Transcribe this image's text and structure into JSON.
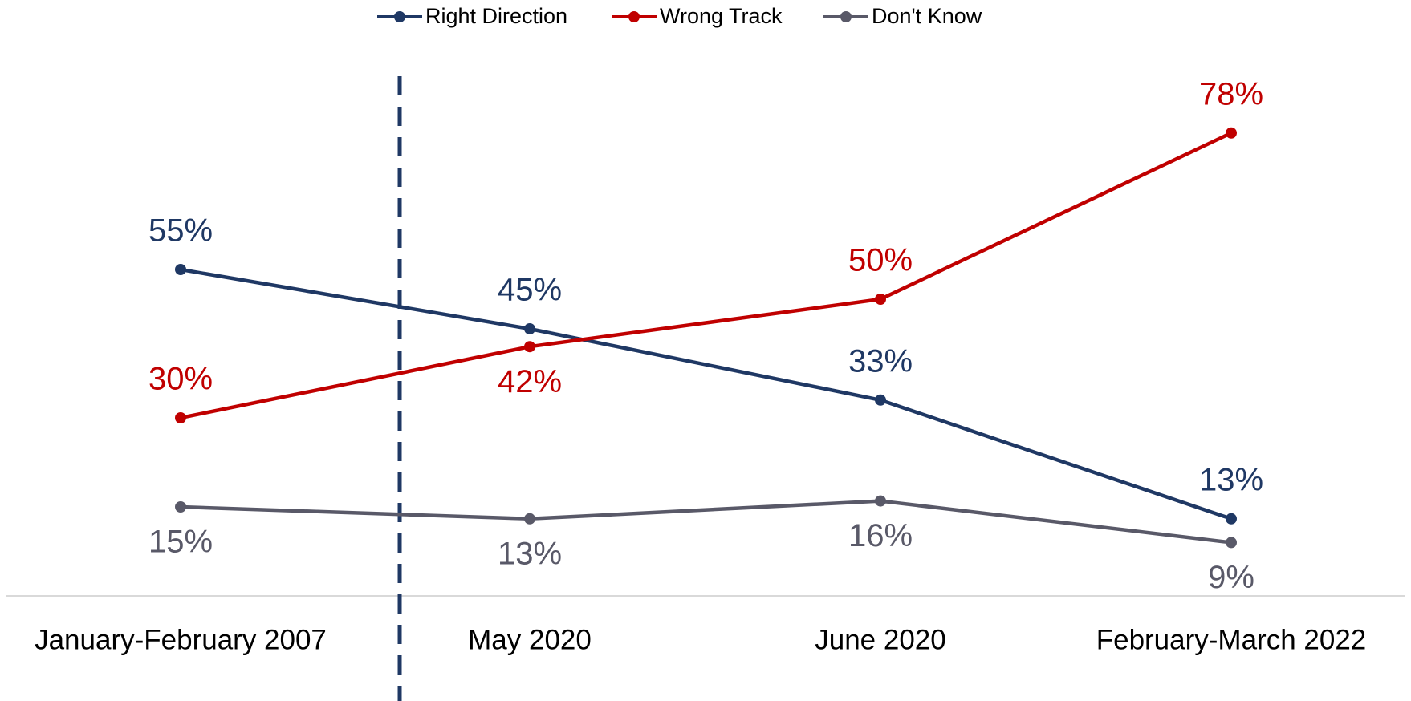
{
  "chart_data": {
    "type": "line",
    "categories": [
      "January-February 2007",
      "May 2020",
      "June 2020",
      "February-March 2022"
    ],
    "series": [
      {
        "name": "Right Direction",
        "color": "#1f3864",
        "values": [
          55,
          45,
          33,
          13
        ],
        "value_labels": [
          "55%",
          "45%",
          "33%",
          "13%"
        ]
      },
      {
        "name": "Wrong Track",
        "color": "#c00000",
        "values": [
          30,
          42,
          50,
          78
        ],
        "value_labels": [
          "30%",
          "42%",
          "50%",
          "78%"
        ]
      },
      {
        "name": "Don't Know",
        "color": "#595968",
        "values": [
          15,
          13,
          16,
          9
        ],
        "value_labels": [
          "15%",
          "13%",
          "16%",
          "9%"
        ]
      }
    ],
    "ylim": [
      0,
      100
    ]
  }
}
